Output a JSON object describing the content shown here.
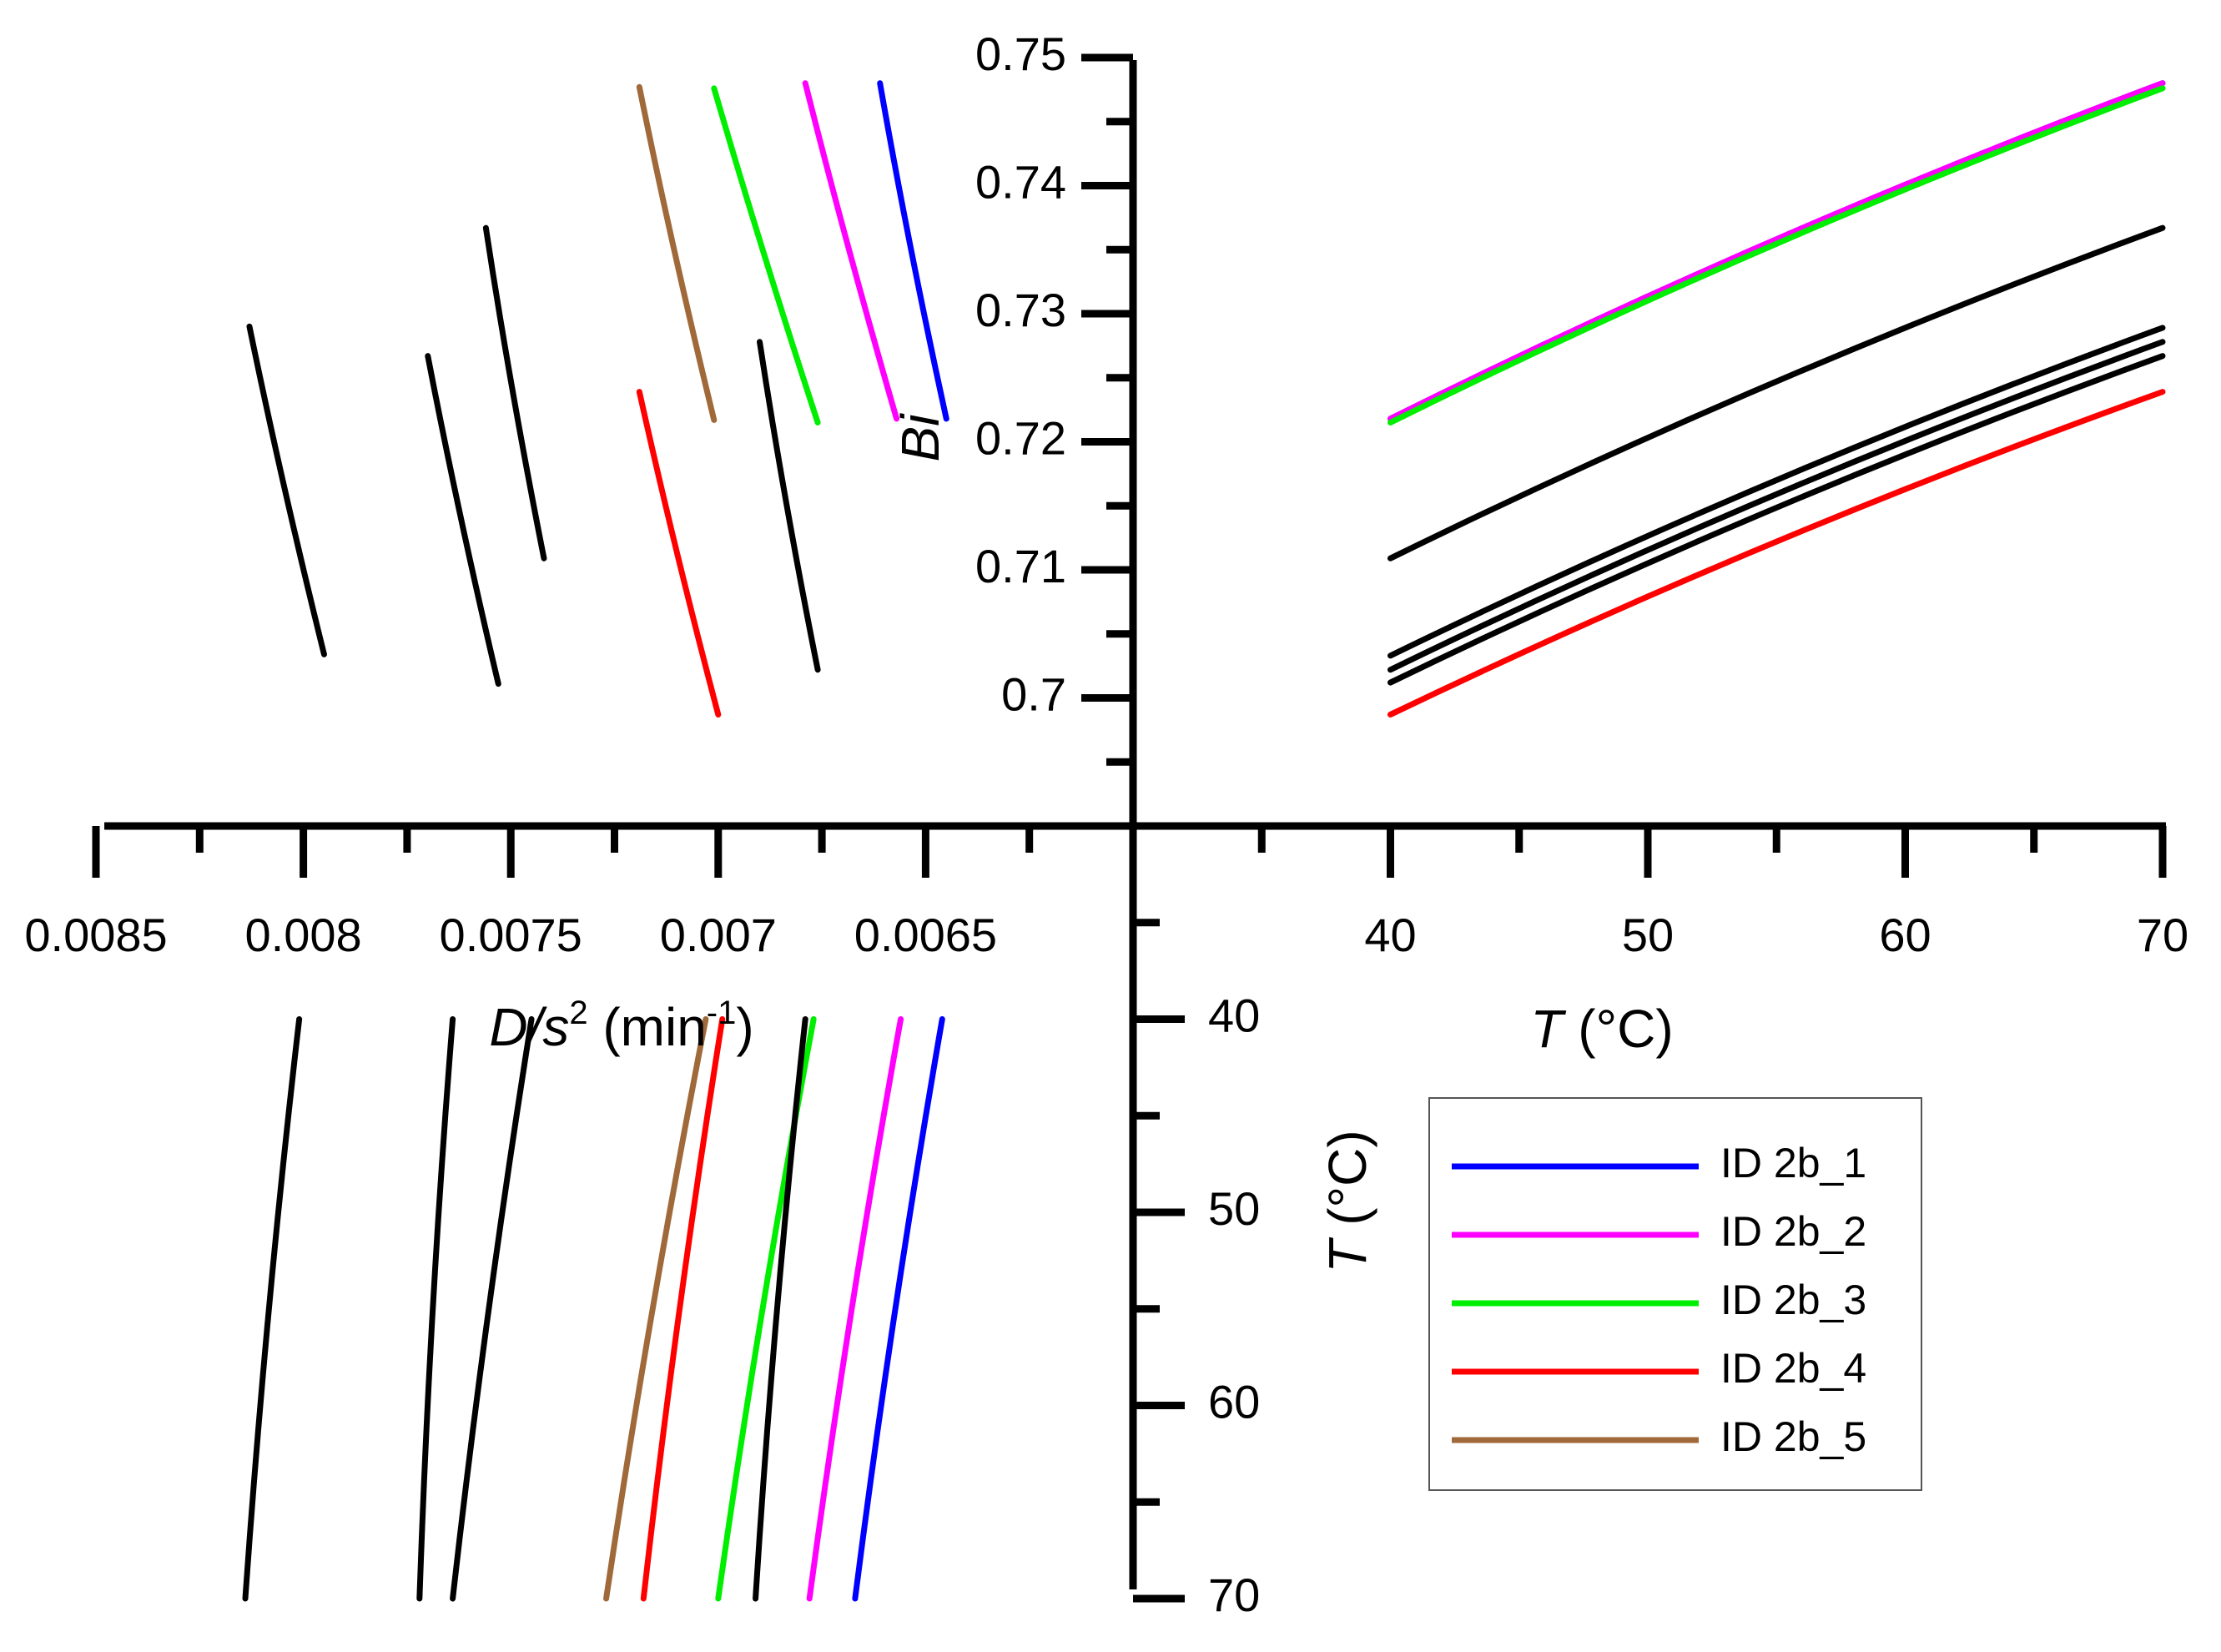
{
  "chart_data": {
    "type": "line",
    "quadrants": [
      {
        "id": "bi-vs-T",
        "position": "top-right",
        "x": {
          "label": "T",
          "unit": " (°C)",
          "range": [
            30,
            70
          ],
          "ticks": [
            "40",
            "50",
            "60",
            "70"
          ]
        },
        "y": {
          "label": "Bi",
          "range": [
            0.69,
            0.75
          ],
          "ticks": [
            "0.7",
            "0.71",
            "0.72",
            "0.73",
            "0.74",
            "0.75"
          ]
        }
      },
      {
        "id": "bi-vs-D",
        "position": "top-left",
        "x": {
          "label_italic": "D/s",
          "label_sup": "2",
          "label_unit": " (min",
          "label_unit_sup": "-1",
          "label_close": ")",
          "range": [
            0.006,
            0.0085
          ],
          "direction": "reversed",
          "ticks": [
            "0.0085",
            "0.008",
            "0.0075",
            "0.007",
            "0.0065"
          ]
        },
        "y": {
          "label": "Bi",
          "range": [
            0.69,
            0.75
          ]
        }
      },
      {
        "id": "T-vs-D",
        "position": "bottom-left",
        "x": {
          "label": "D/s2 (min-1)",
          "range": [
            0.006,
            0.0085
          ]
        },
        "y": {
          "label": "T",
          "unit": " (°C)",
          "range": [
            30,
            70
          ],
          "direction": "downward",
          "ticks": [
            "40",
            "50",
            "60",
            "70"
          ]
        }
      }
    ],
    "series": [
      {
        "name": "ID 2b_1",
        "color": "#0000ff",
        "legend": true,
        "bi_vs_T": {
          "T": [
            40,
            70
          ],
          "Bi": [
            0.7218,
            0.748
          ]
        },
        "bi_vs_D": {
          "D": [
            0.00645,
            0.00661
          ],
          "Bi": [
            0.7218,
            0.748
          ]
        },
        "T_vs_D": {
          "T": [
            40,
            70
          ],
          "D": [
            0.00646,
            0.00667
          ]
        }
      },
      {
        "name": "ID 2b_2",
        "color": "#ff00ff",
        "legend": true,
        "bi_vs_T": {
          "T": [
            40,
            70
          ],
          "Bi": [
            0.7218,
            0.748
          ]
        },
        "bi_vs_D": {
          "D": [
            0.00657,
            0.00679
          ],
          "Bi": [
            0.7218,
            0.748
          ]
        },
        "T_vs_D": {
          "T": [
            40,
            70
          ],
          "D": [
            0.00656,
            0.00678
          ]
        }
      },
      {
        "name": "ID 2b_3",
        "color": "#00ee00",
        "legend": true,
        "bi_vs_T": {
          "T": [
            40,
            70
          ],
          "Bi": [
            0.7215,
            0.7476
          ]
        },
        "bi_vs_D": {
          "D": [
            0.00676,
            0.00701
          ],
          "Bi": [
            0.7215,
            0.7476
          ]
        },
        "T_vs_D": {
          "T": [
            40,
            70
          ],
          "D": [
            0.00677,
            0.007
          ]
        }
      },
      {
        "name": "ID 2b_4",
        "color": "#ff0000",
        "legend": true,
        "bi_vs_T": {
          "T": [
            40,
            70
          ],
          "Bi": [
            0.6987,
            0.7239
          ]
        },
        "bi_vs_D": {
          "D": [
            0.007,
            0.00719
          ],
          "Bi": [
            0.6987,
            0.7239
          ]
        },
        "T_vs_D": {
          "T": [
            40,
            70
          ],
          "D": [
            0.00699,
            0.00718
          ]
        }
      },
      {
        "name": "ID 2b_5",
        "color": "#a0693a",
        "legend": true,
        "bi_vs_T": null,
        "bi_vs_D": {
          "D": [
            0.00701,
            0.00719
          ],
          "Bi": [
            0.7217,
            0.7477
          ]
        },
        "T_vs_D": {
          "T": [
            40,
            70
          ],
          "D": [
            0.00703,
            0.00727
          ]
        }
      },
      {
        "name": "black-1",
        "color": "#000000",
        "legend": false,
        "bi_vs_T": {
          "T": [
            40,
            70
          ],
          "Bi": [
            0.7109,
            0.7367
          ]
        },
        "bi_vs_D": {
          "D": [
            0.00742,
            0.00756
          ],
          "Bi": [
            0.7109,
            0.7367
          ]
        },
        "T_vs_D": {
          "T": [
            40,
            70
          ],
          "D": [
            0.00745,
            0.00764
          ]
        }
      },
      {
        "name": "black-2",
        "color": "#000000",
        "legend": false,
        "bi_vs_T": {
          "T": [
            40,
            70
          ],
          "Bi": [
            0.7033,
            0.7289
          ]
        },
        "bi_vs_D": {
          "D": [
            0.00795,
            0.00813
          ],
          "Bi": [
            0.7034,
            0.729
          ]
        },
        "T_vs_D": {
          "T": [
            40,
            70
          ],
          "D": [
            0.00801,
            0.00814
          ]
        }
      },
      {
        "name": "black-3",
        "color": "#000000",
        "legend": false,
        "bi_vs_T": {
          "T": [
            40,
            70
          ],
          "Bi": [
            0.7022,
            0.7278
          ]
        },
        "bi_vs_D": {
          "D": [
            0.00676,
            0.0069
          ],
          "Bi": [
            0.7022,
            0.7278
          ]
        },
        "T_vs_D": {
          "T": [
            40,
            70
          ],
          "D": [
            0.00679,
            0.00691
          ]
        }
      },
      {
        "name": "black-4",
        "color": "#000000",
        "legend": false,
        "bi_vs_T": {
          "T": [
            40,
            70
          ],
          "Bi": [
            0.7012,
            0.7267
          ]
        },
        "bi_vs_D": {
          "D": [
            0.00753,
            0.0077
          ],
          "Bi": [
            0.7011,
            0.7267
          ]
        },
        "T_vs_D": {
          "T": [
            40,
            70
          ],
          "D": [
            0.00764,
            0.00772
          ]
        }
      }
    ],
    "legend_placement": "bottom-right",
    "grid": false
  }
}
